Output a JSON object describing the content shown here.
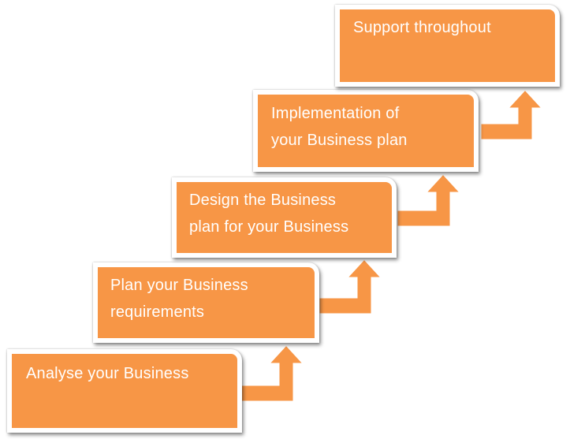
{
  "diagram": {
    "steps": [
      {
        "label": "Analyse your Business"
      },
      {
        "label": "Plan your Business\nrequirements"
      },
      {
        "label": "Design the Business\nplan for your Business"
      },
      {
        "label": "Implementation of\nyour Business plan"
      },
      {
        "label": "Support throughout"
      }
    ],
    "colors": {
      "box_fill": "#f79646",
      "box_border": "#ffffff",
      "text": "#ffffff"
    }
  }
}
